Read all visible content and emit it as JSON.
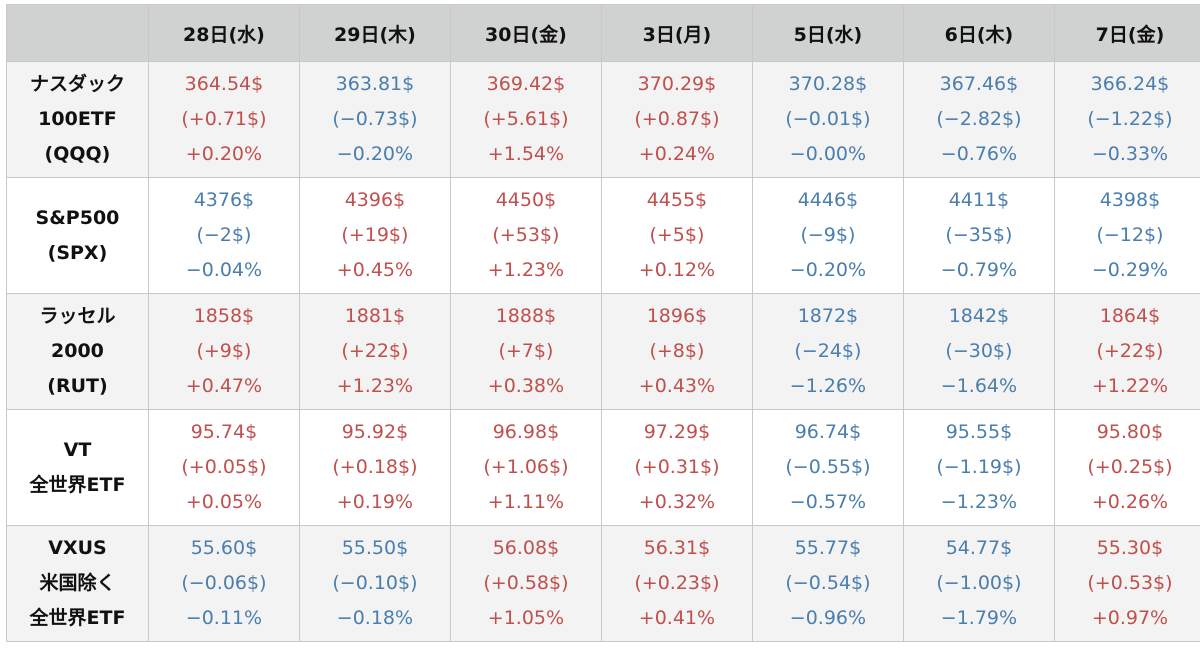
{
  "colors": {
    "up": "#c0504d",
    "down": "#4a7eae",
    "header_bg": "#cfd2d0",
    "stripe": "#f3f3f3"
  },
  "header": {
    "corner": "",
    "days": [
      "28日(水)",
      "29日(木)",
      "30日(金)",
      "3日(月)",
      "5日(水)",
      "6日(木)",
      "7日(金)"
    ]
  },
  "rows": [
    {
      "label": [
        "ナスダック",
        "100ETF",
        "(QQQ)"
      ],
      "cells": [
        {
          "price": "364.54$",
          "change": "(+0.71$)",
          "pct": "+0.20%",
          "dir": "up"
        },
        {
          "price": "363.81$",
          "change": "(−0.73$)",
          "pct": "−0.20%",
          "dir": "down"
        },
        {
          "price": "369.42$",
          "change": "(+5.61$)",
          "pct": "+1.54%",
          "dir": "up"
        },
        {
          "price": "370.29$",
          "change": "(+0.87$)",
          "pct": "+0.24%",
          "dir": "up"
        },
        {
          "price": "370.28$",
          "change": "(−0.01$)",
          "pct": "−0.00%",
          "dir": "down"
        },
        {
          "price": "367.46$",
          "change": "(−2.82$)",
          "pct": "−0.76%",
          "dir": "down"
        },
        {
          "price": "366.24$",
          "change": "(−1.22$)",
          "pct": "−0.33%",
          "dir": "down"
        }
      ]
    },
    {
      "label": [
        "S&P500",
        "(SPX)"
      ],
      "cells": [
        {
          "price": "4376$",
          "change": "(−2$)",
          "pct": "−0.04%",
          "dir": "down"
        },
        {
          "price": "4396$",
          "change": "(+19$)",
          "pct": "+0.45%",
          "dir": "up"
        },
        {
          "price": "4450$",
          "change": "(+53$)",
          "pct": "+1.23%",
          "dir": "up"
        },
        {
          "price": "4455$",
          "change": "(+5$)",
          "pct": "+0.12%",
          "dir": "up"
        },
        {
          "price": "4446$",
          "change": "(−9$)",
          "pct": "−0.20%",
          "dir": "down"
        },
        {
          "price": "4411$",
          "change": "(−35$)",
          "pct": "−0.79%",
          "dir": "down"
        },
        {
          "price": "4398$",
          "change": "(−12$)",
          "pct": "−0.29%",
          "dir": "down"
        }
      ]
    },
    {
      "label": [
        "ラッセル",
        "2000",
        "(RUT)"
      ],
      "cells": [
        {
          "price": "1858$",
          "change": "(+9$)",
          "pct": "+0.47%",
          "dir": "up"
        },
        {
          "price": "1881$",
          "change": "(+22$)",
          "pct": "+1.23%",
          "dir": "up"
        },
        {
          "price": "1888$",
          "change": "(+7$)",
          "pct": "+0.38%",
          "dir": "up"
        },
        {
          "price": "1896$",
          "change": "(+8$)",
          "pct": "+0.43%",
          "dir": "up"
        },
        {
          "price": "1872$",
          "change": "(−24$)",
          "pct": "−1.26%",
          "dir": "down"
        },
        {
          "price": "1842$",
          "change": "(−30$)",
          "pct": "−1.64%",
          "dir": "down"
        },
        {
          "price": "1864$",
          "change": "(+22$)",
          "pct": "+1.22%",
          "dir": "up"
        }
      ]
    },
    {
      "label": [
        "VT",
        "全世界ETF"
      ],
      "cells": [
        {
          "price": "95.74$",
          "change": "(+0.05$)",
          "pct": "+0.05%",
          "dir": "up"
        },
        {
          "price": "95.92$",
          "change": "(+0.18$)",
          "pct": "+0.19%",
          "dir": "up"
        },
        {
          "price": "96.98$",
          "change": "(+1.06$)",
          "pct": "+1.11%",
          "dir": "up"
        },
        {
          "price": "97.29$",
          "change": "(+0.31$)",
          "pct": "+0.32%",
          "dir": "up"
        },
        {
          "price": "96.74$",
          "change": "(−0.55$)",
          "pct": "−0.57%",
          "dir": "down"
        },
        {
          "price": "95.55$",
          "change": "(−1.19$)",
          "pct": "−1.23%",
          "dir": "down"
        },
        {
          "price": "95.80$",
          "change": "(+0.25$)",
          "pct": "+0.26%",
          "dir": "up"
        }
      ]
    },
    {
      "label": [
        "VXUS",
        "米国除く",
        "全世界ETF"
      ],
      "cells": [
        {
          "price": "55.60$",
          "change": "(−0.06$)",
          "pct": "−0.11%",
          "dir": "down"
        },
        {
          "price": "55.50$",
          "change": "(−0.10$)",
          "pct": "−0.18%",
          "dir": "down"
        },
        {
          "price": "56.08$",
          "change": "(+0.58$)",
          "pct": "+1.05%",
          "dir": "up"
        },
        {
          "price": "56.31$",
          "change": "(+0.23$)",
          "pct": "+0.41%",
          "dir": "up"
        },
        {
          "price": "55.77$",
          "change": "(−0.54$)",
          "pct": "−0.96%",
          "dir": "down"
        },
        {
          "price": "54.77$",
          "change": "(−1.00$)",
          "pct": "−1.79%",
          "dir": "down"
        },
        {
          "price": "55.30$",
          "change": "(+0.53$)",
          "pct": "+0.97%",
          "dir": "up"
        }
      ]
    }
  ]
}
